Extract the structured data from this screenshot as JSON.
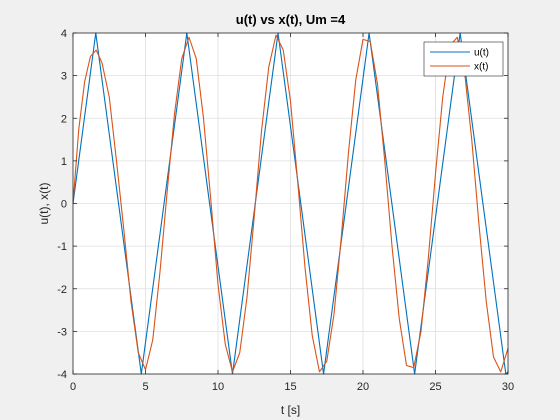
{
  "chart_data": {
    "type": "line",
    "title": "u(t) vs x(t), Um =4",
    "xlabel": "t [s]",
    "ylabel": "u(t), x(t)",
    "xlim": [
      0,
      30
    ],
    "ylim": [
      -4,
      4
    ],
    "xticks": [
      0,
      5,
      10,
      15,
      20,
      25,
      30
    ],
    "yticks": [
      -4,
      -3,
      -2,
      -1,
      0,
      1,
      2,
      3,
      4
    ],
    "grid": true,
    "legend_position": "top-right",
    "series": [
      {
        "name": "u(t)",
        "color": "#0072BD",
        "x": [
          0,
          1.57,
          3.14,
          4.71,
          6.28,
          7.85,
          9.42,
          11.0,
          12.57,
          14.14,
          15.71,
          17.28,
          18.85,
          20.42,
          21.99,
          23.56,
          25.13,
          26.7,
          28.27,
          29.85,
          30
        ],
        "y": [
          0,
          4,
          0,
          -4,
          0,
          4,
          0,
          -4,
          0,
          4,
          0,
          -4,
          0,
          4,
          0,
          -4,
          0,
          4,
          0,
          -4,
          -3.95
        ]
      },
      {
        "name": "x(t)",
        "color": "#D95319",
        "x": [
          0,
          0.4,
          0.8,
          1.2,
          1.6,
          2.0,
          2.5,
          3.0,
          3.5,
          4.0,
          4.5,
          5.0,
          5.5,
          6.0,
          6.5,
          7.0,
          7.5,
          8.0,
          8.5,
          9.0,
          9.5,
          10.0,
          10.5,
          11.0,
          11.5,
          12.0,
          12.5,
          13.0,
          13.5,
          14.0,
          14.5,
          15.0,
          15.5,
          16.0,
          16.5,
          17.0,
          17.5,
          18.0,
          18.5,
          19.0,
          19.5,
          20.0,
          20.5,
          21.0,
          21.5,
          22.0,
          22.5,
          23.0,
          23.5,
          24.0,
          24.5,
          25.0,
          25.5,
          26.0,
          26.5,
          27.0,
          27.5,
          28.0,
          28.5,
          29.0,
          29.5,
          30.0
        ],
        "y": [
          0,
          1.75,
          2.85,
          3.45,
          3.6,
          3.3,
          2.5,
          1.0,
          -0.6,
          -2.3,
          -3.5,
          -3.9,
          -3.2,
          -1.6,
          0.3,
          2.1,
          3.4,
          3.9,
          3.4,
          2.0,
          0.1,
          -1.9,
          -3.3,
          -3.95,
          -3.5,
          -2.2,
          -0.3,
          1.7,
          3.2,
          3.95,
          3.6,
          2.4,
          0.5,
          -1.5,
          -3.1,
          -3.95,
          -3.7,
          -2.6,
          -0.8,
          1.2,
          2.9,
          3.85,
          3.8,
          2.8,
          1.0,
          -1.0,
          -2.7,
          -3.8,
          -3.85,
          -3.0,
          -1.3,
          0.7,
          2.5,
          3.7,
          3.9,
          3.1,
          1.5,
          -0.5,
          -2.3,
          -3.6,
          -3.95,
          -3.4
        ]
      }
    ]
  }
}
